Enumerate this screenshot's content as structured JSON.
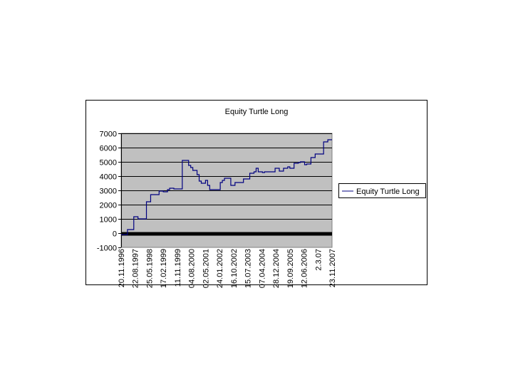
{
  "chart_data": {
    "type": "line",
    "title": "Equity Turtle Long",
    "xlabel": "",
    "ylabel": "",
    "ylim": [
      -1000,
      7000
    ],
    "yticks": [
      -1000,
      0,
      1000,
      2000,
      3000,
      4000,
      5000,
      6000,
      7000
    ],
    "grid": true,
    "legend_placement": "right",
    "colors": {
      "plot_background": "#C0C0C0",
      "series": "#000080",
      "axis_zero": "#000000"
    },
    "categories": [
      "20.11.1996",
      "22.08.1997",
      "25.05.1998",
      "17.02.1999",
      "11.11.1999",
      "04.08.2000",
      "02.05.2001",
      "24.01.2002",
      "16.10.2002",
      "15.07.2003",
      "07.04.2004",
      "28.12.2004",
      "19.09.2005",
      "12.06.2006",
      "2.3.07",
      "23.11.2007"
    ],
    "x_range": [
      0,
      100
    ],
    "series": [
      {
        "name": "Equity Turtle Long",
        "step": true,
        "points": [
          [
            0,
            -100
          ],
          [
            3,
            250
          ],
          [
            6,
            1150
          ],
          [
            8,
            1000
          ],
          [
            12,
            2200
          ],
          [
            14,
            2700
          ],
          [
            18,
            2950
          ],
          [
            20,
            2900
          ],
          [
            22,
            3050
          ],
          [
            23,
            3150
          ],
          [
            25,
            3100
          ],
          [
            29,
            5100
          ],
          [
            32,
            4750
          ],
          [
            33,
            4600
          ],
          [
            34,
            4400
          ],
          [
            36,
            4100
          ],
          [
            37,
            3650
          ],
          [
            38,
            3500
          ],
          [
            40,
            3700
          ],
          [
            41,
            3350
          ],
          [
            42,
            3050
          ],
          [
            47,
            3550
          ],
          [
            48,
            3700
          ],
          [
            49,
            3850
          ],
          [
            52,
            3350
          ],
          [
            54,
            3550
          ],
          [
            58,
            3800
          ],
          [
            61,
            4200
          ],
          [
            63,
            4300
          ],
          [
            64,
            4550
          ],
          [
            65,
            4300
          ],
          [
            67,
            4250
          ],
          [
            68,
            4300
          ],
          [
            73,
            4550
          ],
          [
            75,
            4350
          ],
          [
            77,
            4550
          ],
          [
            79,
            4650
          ],
          [
            80,
            4550
          ],
          [
            82,
            4900
          ],
          [
            84,
            4950
          ],
          [
            85,
            5000
          ],
          [
            87,
            4800
          ],
          [
            88,
            4850
          ],
          [
            90,
            5300
          ],
          [
            92,
            5550
          ],
          [
            96,
            6400
          ],
          [
            98,
            6550
          ],
          [
            100,
            6550
          ]
        ]
      }
    ]
  }
}
